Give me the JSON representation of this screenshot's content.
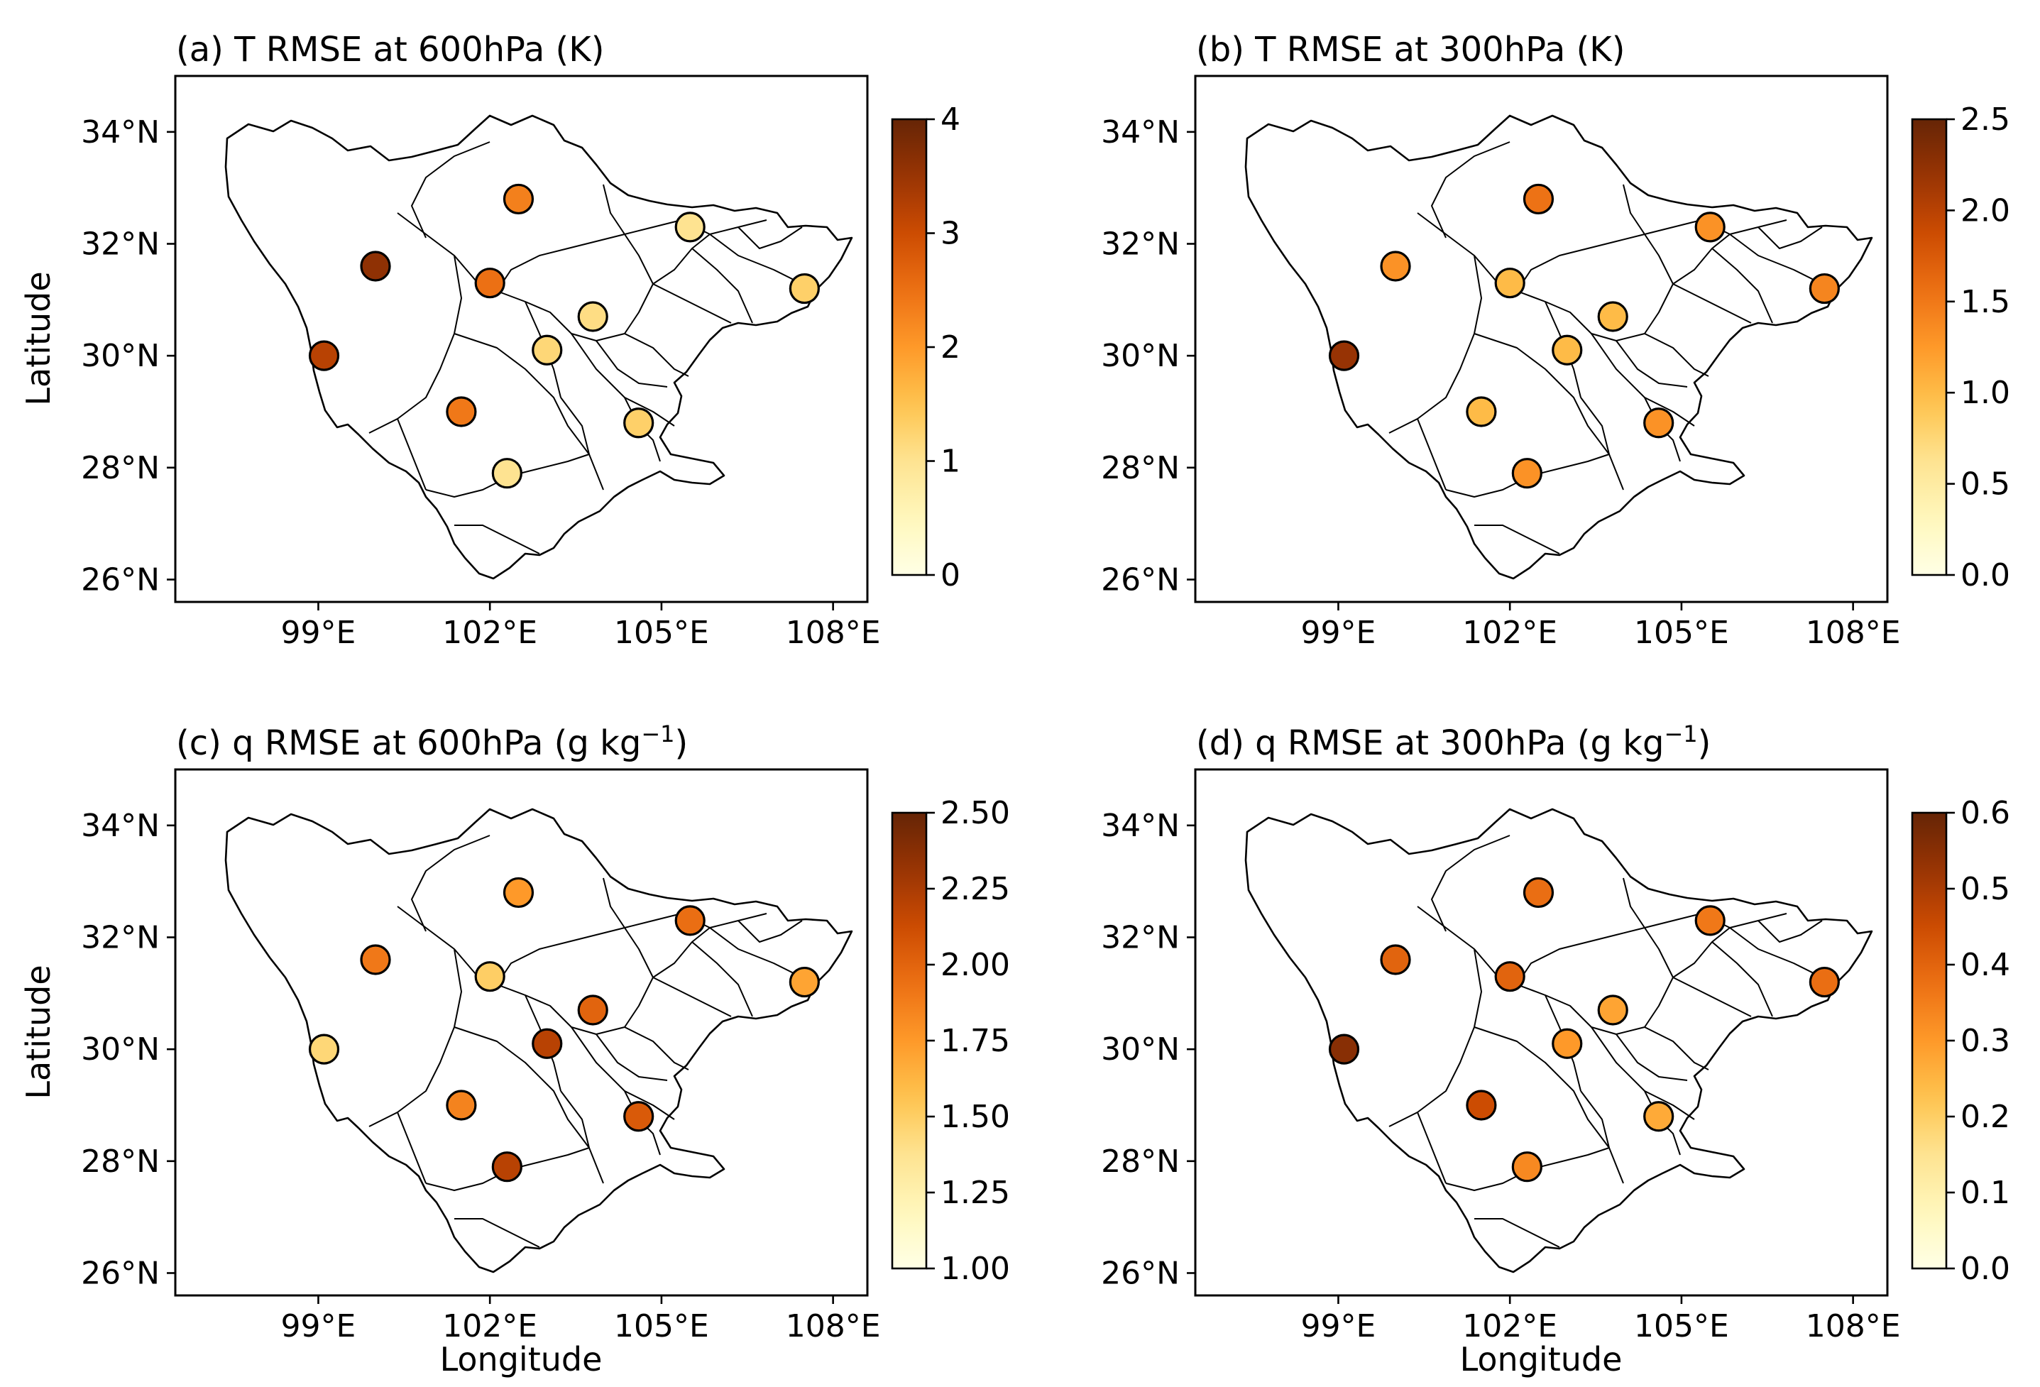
{
  "chart_data": [
    {
      "type": "scatter",
      "title_main": "(a) T RMSE at 600hPa (K)",
      "title_sup": "",
      "title_end": "",
      "xlabel": "",
      "ylabel": "Latitude",
      "xlim": [
        96.5,
        108.6
      ],
      "ylim": [
        25.6,
        35.0
      ],
      "xticks": [
        {
          "value": 99,
          "label": "99°E"
        },
        {
          "value": 102,
          "label": "102°E"
        },
        {
          "value": 105,
          "label": "105°E"
        },
        {
          "value": 108,
          "label": "108°E"
        }
      ],
      "yticks": [
        {
          "value": 26,
          "label": "26°N"
        },
        {
          "value": 28,
          "label": "28°N"
        },
        {
          "value": 30,
          "label": "30°N"
        },
        {
          "value": 32,
          "label": "32°N"
        },
        {
          "value": 34,
          "label": "34°N"
        }
      ],
      "colorbar": {
        "min": 0,
        "max": 4,
        "colormap": "YlOrBr",
        "ticks": [
          {
            "value": 0,
            "label": "0"
          },
          {
            "value": 1,
            "label": "1"
          },
          {
            "value": 2,
            "label": "2"
          },
          {
            "value": 3,
            "label": "3"
          },
          {
            "value": 4,
            "label": "4"
          }
        ]
      },
      "stations": [
        {
          "lon": 99.1,
          "lat": 30.0,
          "value": 3.2
        },
        {
          "lon": 100.0,
          "lat": 31.6,
          "value": 3.6
        },
        {
          "lon": 101.5,
          "lat": 29.0,
          "value": 2.4
        },
        {
          "lon": 102.0,
          "lat": 31.3,
          "value": 2.5
        },
        {
          "lon": 102.5,
          "lat": 32.8,
          "value": 2.3
        },
        {
          "lon": 102.3,
          "lat": 27.9,
          "value": 1.0
        },
        {
          "lon": 103.0,
          "lat": 30.1,
          "value": 1.2
        },
        {
          "lon": 103.8,
          "lat": 30.7,
          "value": 1.1
        },
        {
          "lon": 104.6,
          "lat": 28.8,
          "value": 1.3
        },
        {
          "lon": 105.5,
          "lat": 32.3,
          "value": 1.0
        },
        {
          "lon": 107.5,
          "lat": 31.2,
          "value": 1.3
        }
      ]
    },
    {
      "type": "scatter",
      "title_main": "(b) T RMSE at 300hPa (K)",
      "title_sup": "",
      "title_end": "",
      "xlabel": "",
      "ylabel": "",
      "xlim": [
        96.5,
        108.6
      ],
      "ylim": [
        25.6,
        35.0
      ],
      "xticks": [
        {
          "value": 99,
          "label": "99°E"
        },
        {
          "value": 102,
          "label": "102°E"
        },
        {
          "value": 105,
          "label": "105°E"
        },
        {
          "value": 108,
          "label": "108°E"
        }
      ],
      "yticks": [
        {
          "value": 26,
          "label": "26°N"
        },
        {
          "value": 28,
          "label": "28°N"
        },
        {
          "value": 30,
          "label": "30°N"
        },
        {
          "value": 32,
          "label": "32°N"
        },
        {
          "value": 34,
          "label": "34°N"
        }
      ],
      "colorbar": {
        "min": 0,
        "max": 2.5,
        "colormap": "YlOrBr",
        "ticks": [
          {
            "value": 0,
            "label": "0.0"
          },
          {
            "value": 0.5,
            "label": "0.5"
          },
          {
            "value": 1.0,
            "label": "1.0"
          },
          {
            "value": 1.5,
            "label": "1.5"
          },
          {
            "value": 2.0,
            "label": "2.0"
          },
          {
            "value": 2.5,
            "label": "2.5"
          }
        ]
      },
      "stations": [
        {
          "lon": 99.1,
          "lat": 30.0,
          "value": 2.2
        },
        {
          "lon": 100.0,
          "lat": 31.6,
          "value": 1.3
        },
        {
          "lon": 101.5,
          "lat": 29.0,
          "value": 1.0
        },
        {
          "lon": 102.0,
          "lat": 31.3,
          "value": 1.0
        },
        {
          "lon": 102.5,
          "lat": 32.8,
          "value": 1.55
        },
        {
          "lon": 102.3,
          "lat": 27.9,
          "value": 1.3
        },
        {
          "lon": 103.0,
          "lat": 30.1,
          "value": 1.0
        },
        {
          "lon": 103.8,
          "lat": 30.7,
          "value": 1.0
        },
        {
          "lon": 104.6,
          "lat": 28.8,
          "value": 1.3
        },
        {
          "lon": 105.5,
          "lat": 32.3,
          "value": 1.3
        },
        {
          "lon": 107.5,
          "lat": 31.2,
          "value": 1.4
        }
      ]
    },
    {
      "type": "scatter",
      "title_main": "(c) q RMSE at 600hPa (g kg",
      "title_sup": "−1",
      "title_end": ")",
      "xlabel": "Longitude",
      "ylabel": "Latitude",
      "xlim": [
        96.5,
        108.6
      ],
      "ylim": [
        25.6,
        35.0
      ],
      "xticks": [
        {
          "value": 99,
          "label": "99°E"
        },
        {
          "value": 102,
          "label": "102°E"
        },
        {
          "value": 105,
          "label": "105°E"
        },
        {
          "value": 108,
          "label": "108°E"
        }
      ],
      "yticks": [
        {
          "value": 26,
          "label": "26°N"
        },
        {
          "value": 28,
          "label": "28°N"
        },
        {
          "value": 30,
          "label": "30°N"
        },
        {
          "value": 32,
          "label": "32°N"
        },
        {
          "value": 34,
          "label": "34°N"
        }
      ],
      "colorbar": {
        "min": 1.0,
        "max": 2.5,
        "colormap": "YlOrBr",
        "ticks": [
          {
            "value": 1.0,
            "label": "1.00"
          },
          {
            "value": 1.25,
            "label": "1.25"
          },
          {
            "value": 1.5,
            "label": "1.50"
          },
          {
            "value": 1.75,
            "label": "1.75"
          },
          {
            "value": 2.0,
            "label": "2.00"
          },
          {
            "value": 2.25,
            "label": "2.25"
          },
          {
            "value": 2.5,
            "label": "2.50"
          }
        ]
      },
      "stations": [
        {
          "lon": 99.1,
          "lat": 30.0,
          "value": 1.45
        },
        {
          "lon": 100.0,
          "lat": 31.6,
          "value": 1.9
        },
        {
          "lon": 101.5,
          "lat": 29.0,
          "value": 1.85
        },
        {
          "lon": 102.0,
          "lat": 31.3,
          "value": 1.5
        },
        {
          "lon": 102.5,
          "lat": 32.8,
          "value": 1.75
        },
        {
          "lon": 102.3,
          "lat": 27.9,
          "value": 2.2
        },
        {
          "lon": 103.0,
          "lat": 30.1,
          "value": 2.2
        },
        {
          "lon": 103.8,
          "lat": 30.7,
          "value": 2.0
        },
        {
          "lon": 104.6,
          "lat": 28.8,
          "value": 2.05
        },
        {
          "lon": 105.5,
          "lat": 32.3,
          "value": 1.95
        },
        {
          "lon": 107.5,
          "lat": 31.2,
          "value": 1.7
        }
      ]
    },
    {
      "type": "scatter",
      "title_main": "(d) q RMSE at 300hPa (g kg",
      "title_sup": "−1",
      "title_end": ")",
      "xlabel": "Longitude",
      "ylabel": "",
      "xlim": [
        96.5,
        108.6
      ],
      "ylim": [
        25.6,
        35.0
      ],
      "xticks": [
        {
          "value": 99,
          "label": "99°E"
        },
        {
          "value": 102,
          "label": "102°E"
        },
        {
          "value": 105,
          "label": "105°E"
        },
        {
          "value": 108,
          "label": "108°E"
        }
      ],
      "yticks": [
        {
          "value": 26,
          "label": "26°N"
        },
        {
          "value": 28,
          "label": "28°N"
        },
        {
          "value": 30,
          "label": "30°N"
        },
        {
          "value": 32,
          "label": "32°N"
        },
        {
          "value": 34,
          "label": "34°N"
        }
      ],
      "colorbar": {
        "min": 0,
        "max": 0.6,
        "colormap": "YlOrBr",
        "ticks": [
          {
            "value": 0,
            "label": "0.0"
          },
          {
            "value": 0.1,
            "label": "0.1"
          },
          {
            "value": 0.2,
            "label": "0.2"
          },
          {
            "value": 0.3,
            "label": "0.3"
          },
          {
            "value": 0.4,
            "label": "0.4"
          },
          {
            "value": 0.5,
            "label": "0.5"
          },
          {
            "value": 0.6,
            "label": "0.6"
          }
        ]
      },
      "stations": [
        {
          "lon": 99.1,
          "lat": 30.0,
          "value": 0.55
        },
        {
          "lon": 100.0,
          "lat": 31.6,
          "value": 0.4
        },
        {
          "lon": 101.5,
          "lat": 29.0,
          "value": 0.45
        },
        {
          "lon": 102.0,
          "lat": 31.3,
          "value": 0.4
        },
        {
          "lon": 102.5,
          "lat": 32.8,
          "value": 0.38
        },
        {
          "lon": 102.3,
          "lat": 27.9,
          "value": 0.33
        },
        {
          "lon": 103.0,
          "lat": 30.1,
          "value": 0.3
        },
        {
          "lon": 103.8,
          "lat": 30.7,
          "value": 0.28
        },
        {
          "lon": 104.6,
          "lat": 28.8,
          "value": 0.27
        },
        {
          "lon": 105.5,
          "lat": 32.3,
          "value": 0.36
        },
        {
          "lon": 107.5,
          "lat": 31.2,
          "value": 0.38
        }
      ]
    }
  ]
}
